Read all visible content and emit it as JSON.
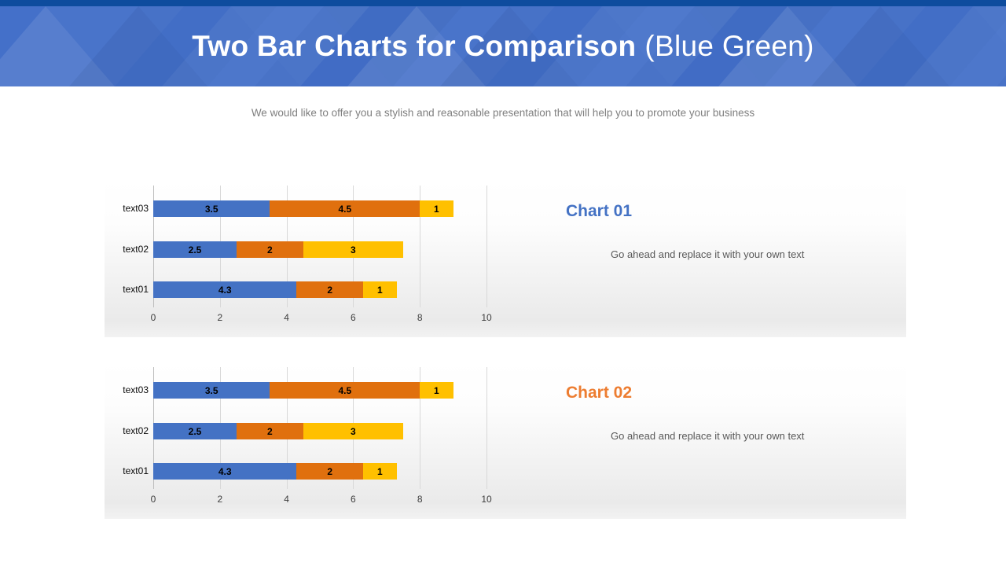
{
  "slide": {
    "title_bold": "Two Bar Charts for Comparison",
    "title_light": "(Blue Green)",
    "subtitle": "We would like to offer you a stylish and reasonable presentation that will help you to promote your business"
  },
  "theme": {
    "top_strip_color": "#0E4C9E",
    "banner_color": "#4470C9",
    "panel_gradient_bottom": "#EAEAEA",
    "gridline_color": "#D8D8D8",
    "series_colors": [
      "#4472C4",
      "#E0700E",
      "#FFC000"
    ]
  },
  "chart_data": [
    {
      "type": "bar",
      "orientation": "horizontal",
      "stacked": true,
      "title": "Chart 01",
      "title_color": "#4472C4",
      "description": "Go ahead and replace it with your own text",
      "categories": [
        "text01",
        "text02",
        "text03"
      ],
      "categories_display_order_top_to_bottom": [
        "text03",
        "text02",
        "text01"
      ],
      "series": [
        {
          "name": "segment-blue",
          "color": "#4472C4",
          "values": [
            4.3,
            2.5,
            3.5
          ]
        },
        {
          "name": "segment-orange",
          "color": "#E0700E",
          "values": [
            2,
            2,
            4.5
          ]
        },
        {
          "name": "segment-yellow",
          "color": "#FFC000",
          "values": [
            1,
            3,
            1
          ]
        }
      ],
      "xlim": [
        0,
        10
      ],
      "xticks": [
        "0",
        "2",
        "4",
        "6",
        "8",
        "10"
      ],
      "grid": true,
      "data_labels": true,
      "legend": "none"
    },
    {
      "type": "bar",
      "orientation": "horizontal",
      "stacked": true,
      "title": "Chart 02",
      "title_color": "#ED7D31",
      "description": "Go ahead and replace it with your own text",
      "categories": [
        "text01",
        "text02",
        "text03"
      ],
      "categories_display_order_top_to_bottom": [
        "text03",
        "text02",
        "text01"
      ],
      "series": [
        {
          "name": "segment-blue",
          "color": "#4472C4",
          "values": [
            4.3,
            2.5,
            3.5
          ]
        },
        {
          "name": "segment-orange",
          "color": "#E0700E",
          "values": [
            2,
            2,
            4.5
          ]
        },
        {
          "name": "segment-yellow",
          "color": "#FFC000",
          "values": [
            1,
            3,
            1
          ]
        }
      ],
      "xlim": [
        0,
        10
      ],
      "xticks": [
        "0",
        "2",
        "4",
        "6",
        "8",
        "10"
      ],
      "grid": true,
      "data_labels": true,
      "legend": "none"
    }
  ]
}
